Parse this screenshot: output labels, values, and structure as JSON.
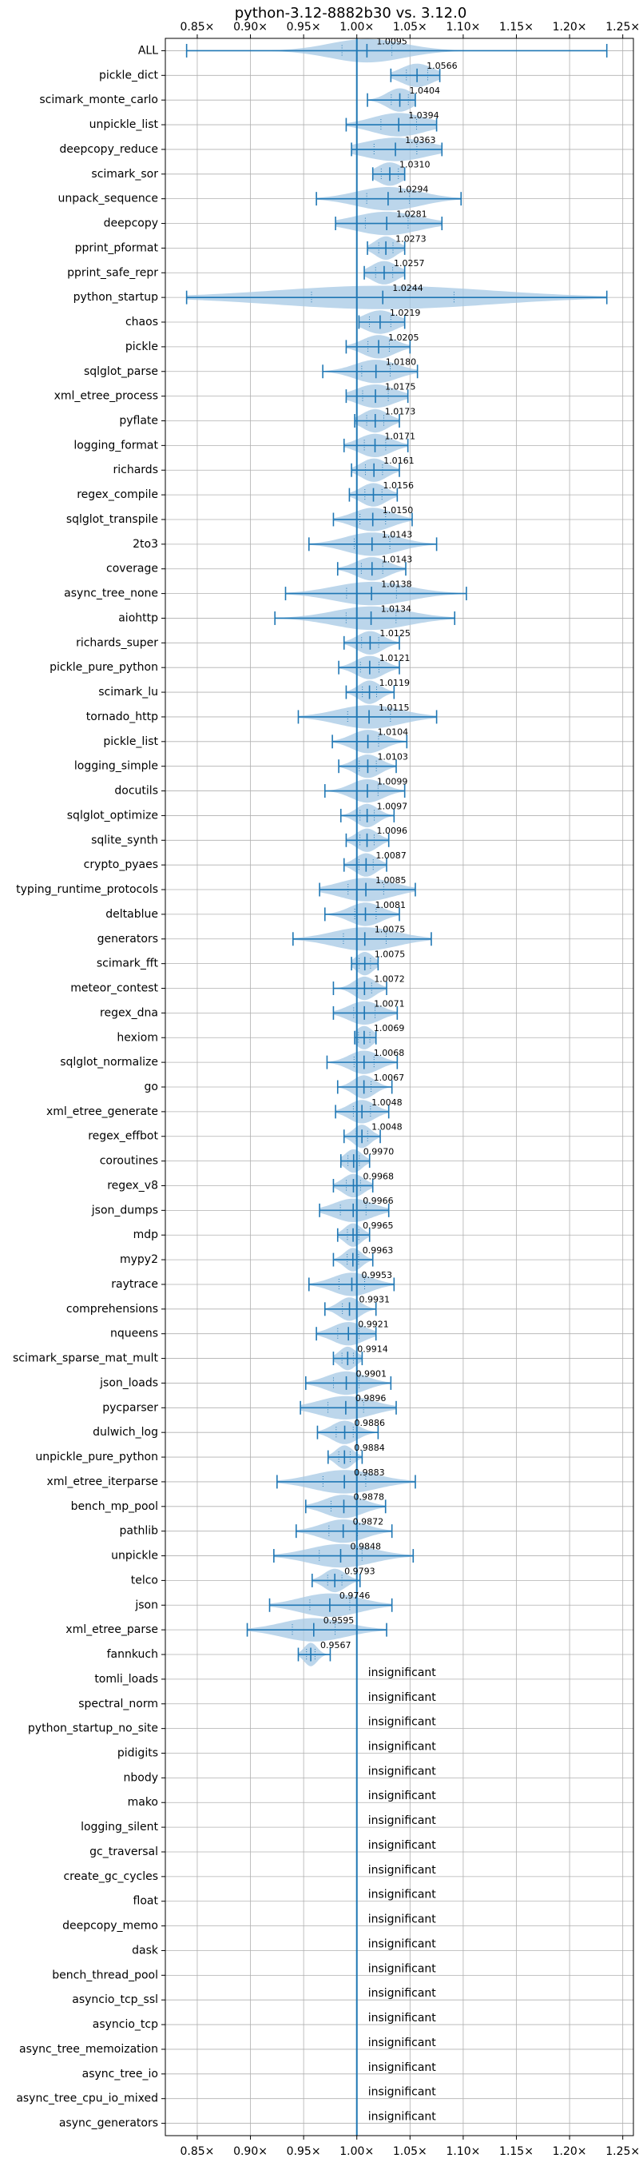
{
  "chart_data": {
    "type": "violin",
    "title": "python-3.12-8882b30 vs. 3.12.0",
    "xlabel": "",
    "ylabel": "",
    "xlim": [
      0.82,
      1.26
    ],
    "xticks": [
      0.85,
      0.9,
      0.95,
      1.0,
      1.05,
      1.1,
      1.15,
      1.2,
      1.25
    ],
    "xtick_labels": [
      "0.85×",
      "0.90×",
      "0.95×",
      "1.00×",
      "1.05×",
      "1.10×",
      "1.15×",
      "1.20×",
      "1.25×"
    ],
    "reference_line": 1.0,
    "grid": true,
    "colors": {
      "violin": "#a6c8e4",
      "line": "#1f77b4",
      "grid": "#b0b0b0"
    },
    "insignificant_label": "insignificant",
    "benchmarks": [
      {
        "name": "ALL",
        "label": "1.0095",
        "center": 1.0095,
        "min": 0.84,
        "max": 1.235,
        "spread": 0.035
      },
      {
        "name": "pickle_dict",
        "label": "1.0566",
        "center": 1.0566,
        "min": 1.032,
        "max": 1.078,
        "spread": 0.015
      },
      {
        "name": "scimark_monte_carlo",
        "label": "1.0404",
        "center": 1.0404,
        "min": 1.01,
        "max": 1.055,
        "spread": 0.012
      },
      {
        "name": "unpickle_list",
        "label": "1.0394",
        "center": 1.0394,
        "min": 0.99,
        "max": 1.075,
        "spread": 0.025
      },
      {
        "name": "deepcopy_reduce",
        "label": "1.0363",
        "center": 1.0363,
        "min": 0.995,
        "max": 1.08,
        "spread": 0.03
      },
      {
        "name": "scimark_sor",
        "label": "1.0310",
        "center": 1.031,
        "min": 1.015,
        "max": 1.045,
        "spread": 0.012
      },
      {
        "name": "unpack_sequence",
        "label": "1.0294",
        "center": 1.0294,
        "min": 0.962,
        "max": 1.098,
        "spread": 0.03
      },
      {
        "name": "deepcopy",
        "label": "1.0281",
        "center": 1.0281,
        "min": 0.98,
        "max": 1.08,
        "spread": 0.03
      },
      {
        "name": "pprint_pformat",
        "label": "1.0273",
        "center": 1.0273,
        "min": 1.01,
        "max": 1.045,
        "spread": 0.01
      },
      {
        "name": "pprint_safe_repr",
        "label": "1.0257",
        "center": 1.0257,
        "min": 1.007,
        "max": 1.045,
        "spread": 0.012
      },
      {
        "name": "python_startup",
        "label": "1.0244",
        "center": 1.0244,
        "min": 0.84,
        "max": 1.235,
        "spread": 0.1
      },
      {
        "name": "chaos",
        "label": "1.0219",
        "center": 1.0219,
        "min": 1.002,
        "max": 1.045,
        "spread": 0.015
      },
      {
        "name": "pickle",
        "label": "1.0205",
        "center": 1.0205,
        "min": 0.99,
        "max": 1.05,
        "spread": 0.015
      },
      {
        "name": "sqlglot_parse",
        "label": "1.0180",
        "center": 1.018,
        "min": 0.968,
        "max": 1.057,
        "spread": 0.02
      },
      {
        "name": "xml_etree_process",
        "label": "1.0175",
        "center": 1.0175,
        "min": 0.99,
        "max": 1.048,
        "spread": 0.018
      },
      {
        "name": "pyflate",
        "label": "1.0173",
        "center": 1.0173,
        "min": 0.998,
        "max": 1.04,
        "spread": 0.012
      },
      {
        "name": "logging_format",
        "label": "1.0171",
        "center": 1.0171,
        "min": 0.988,
        "max": 1.048,
        "spread": 0.015
      },
      {
        "name": "richards",
        "label": "1.0161",
        "center": 1.0161,
        "min": 0.995,
        "max": 1.04,
        "spread": 0.012
      },
      {
        "name": "regex_compile",
        "label": "1.0156",
        "center": 1.0156,
        "min": 0.993,
        "max": 1.038,
        "spread": 0.012
      },
      {
        "name": "sqlglot_transpile",
        "label": "1.0150",
        "center": 1.015,
        "min": 0.978,
        "max": 1.052,
        "spread": 0.018
      },
      {
        "name": "2to3",
        "label": "1.0143",
        "center": 1.0143,
        "min": 0.955,
        "max": 1.075,
        "spread": 0.025
      },
      {
        "name": "coverage",
        "label": "1.0143",
        "center": 1.0143,
        "min": 0.982,
        "max": 1.046,
        "spread": 0.015
      },
      {
        "name": "async_tree_none",
        "label": "1.0138",
        "center": 1.0138,
        "min": 0.933,
        "max": 1.103,
        "spread": 0.035
      },
      {
        "name": "aiohttp",
        "label": "1.0134",
        "center": 1.0134,
        "min": 0.923,
        "max": 1.092,
        "spread": 0.035
      },
      {
        "name": "richards_super",
        "label": "1.0125",
        "center": 1.0125,
        "min": 0.988,
        "max": 1.04,
        "spread": 0.012
      },
      {
        "name": "pickle_pure_python",
        "label": "1.0121",
        "center": 1.0121,
        "min": 0.983,
        "max": 1.04,
        "spread": 0.013
      },
      {
        "name": "scimark_lu",
        "label": "1.0119",
        "center": 1.0119,
        "min": 0.99,
        "max": 1.035,
        "spread": 0.01
      },
      {
        "name": "tornado_http",
        "label": "1.0115",
        "center": 1.0115,
        "min": 0.945,
        "max": 1.075,
        "spread": 0.03
      },
      {
        "name": "pickle_list",
        "label": "1.0104",
        "center": 1.0104,
        "min": 0.977,
        "max": 1.047,
        "spread": 0.015
      },
      {
        "name": "logging_simple",
        "label": "1.0103",
        "center": 1.0103,
        "min": 0.983,
        "max": 1.037,
        "spread": 0.012
      },
      {
        "name": "docutils",
        "label": "1.0099",
        "center": 1.0099,
        "min": 0.97,
        "max": 1.045,
        "spread": 0.015
      },
      {
        "name": "sqlglot_optimize",
        "label": "1.0097",
        "center": 1.0097,
        "min": 0.985,
        "max": 1.035,
        "spread": 0.01
      },
      {
        "name": "sqlite_synth",
        "label": "1.0096",
        "center": 1.0096,
        "min": 0.99,
        "max": 1.03,
        "spread": 0.01
      },
      {
        "name": "crypto_pyaes",
        "label": "1.0087",
        "center": 1.0087,
        "min": 0.988,
        "max": 1.028,
        "spread": 0.01
      },
      {
        "name": "typing_runtime_protocols",
        "label": "1.0085",
        "center": 1.0085,
        "min": 0.965,
        "max": 1.055,
        "spread": 0.025
      },
      {
        "name": "deltablue",
        "label": "1.0081",
        "center": 1.0081,
        "min": 0.97,
        "max": 1.04,
        "spread": 0.015
      },
      {
        "name": "generators",
        "label": "1.0075",
        "center": 1.0075,
        "min": 0.94,
        "max": 1.07,
        "spread": 0.03
      },
      {
        "name": "scimark_fft",
        "label": "1.0075",
        "center": 1.0075,
        "min": 0.995,
        "max": 1.02,
        "spread": 0.008
      },
      {
        "name": "meteor_contest",
        "label": "1.0072",
        "center": 1.0072,
        "min": 0.978,
        "max": 1.028,
        "spread": 0.01
      },
      {
        "name": "regex_dna",
        "label": "1.0071",
        "center": 1.0071,
        "min": 0.978,
        "max": 1.038,
        "spread": 0.015
      },
      {
        "name": "hexiom",
        "label": "1.0069",
        "center": 1.0069,
        "min": 0.998,
        "max": 1.018,
        "spread": 0.008
      },
      {
        "name": "sqlglot_normalize",
        "label": "1.0068",
        "center": 1.0068,
        "min": 0.972,
        "max": 1.038,
        "spread": 0.014
      },
      {
        "name": "go",
        "label": "1.0067",
        "center": 1.0067,
        "min": 0.982,
        "max": 1.033,
        "spread": 0.01
      },
      {
        "name": "xml_etree_generate",
        "label": "1.0048",
        "center": 1.0048,
        "min": 0.98,
        "max": 1.03,
        "spread": 0.012
      },
      {
        "name": "regex_effbot",
        "label": "1.0048",
        "center": 1.0048,
        "min": 0.988,
        "max": 1.022,
        "spread": 0.008
      },
      {
        "name": "coroutines",
        "label": "0.9970",
        "center": 0.997,
        "min": 0.985,
        "max": 1.012,
        "spread": 0.008
      },
      {
        "name": "regex_v8",
        "label": "0.9968",
        "center": 0.9968,
        "min": 0.978,
        "max": 1.015,
        "spread": 0.01
      },
      {
        "name": "json_dumps",
        "label": "0.9966",
        "center": 0.9966,
        "min": 0.965,
        "max": 1.03,
        "spread": 0.018
      },
      {
        "name": "mdp",
        "label": "0.9965",
        "center": 0.9965,
        "min": 0.982,
        "max": 1.012,
        "spread": 0.008
      },
      {
        "name": "mypy2",
        "label": "0.9963",
        "center": 0.9963,
        "min": 0.978,
        "max": 1.015,
        "spread": 0.008
      },
      {
        "name": "raytrace",
        "label": "0.9953",
        "center": 0.9953,
        "min": 0.955,
        "max": 1.035,
        "spread": 0.018
      },
      {
        "name": "comprehensions",
        "label": "0.9931",
        "center": 0.9931,
        "min": 0.97,
        "max": 1.018,
        "spread": 0.01
      },
      {
        "name": "nqueens",
        "label": "0.9921",
        "center": 0.9921,
        "min": 0.962,
        "max": 1.018,
        "spread": 0.015
      },
      {
        "name": "scimark_sparse_mat_mult",
        "label": "0.9914",
        "center": 0.9914,
        "min": 0.978,
        "max": 1.005,
        "spread": 0.008
      },
      {
        "name": "json_loads",
        "label": "0.9901",
        "center": 0.9901,
        "min": 0.952,
        "max": 1.032,
        "spread": 0.018
      },
      {
        "name": "pycparser",
        "label": "0.9896",
        "center": 0.9896,
        "min": 0.947,
        "max": 1.037,
        "spread": 0.025
      },
      {
        "name": "dulwich_log",
        "label": "0.9886",
        "center": 0.9886,
        "min": 0.963,
        "max": 1.02,
        "spread": 0.012
      },
      {
        "name": "unpickle_pure_python",
        "label": "0.9884",
        "center": 0.9884,
        "min": 0.973,
        "max": 1.005,
        "spread": 0.008
      },
      {
        "name": "xml_etree_iterparse",
        "label": "0.9883",
        "center": 0.9883,
        "min": 0.925,
        "max": 1.055,
        "spread": 0.03
      },
      {
        "name": "bench_mp_pool",
        "label": "0.9878",
        "center": 0.9878,
        "min": 0.952,
        "max": 1.027,
        "spread": 0.018
      },
      {
        "name": "pathlib",
        "label": "0.9872",
        "center": 0.9872,
        "min": 0.943,
        "max": 1.033,
        "spread": 0.02
      },
      {
        "name": "unpickle",
        "label": "0.9848",
        "center": 0.9848,
        "min": 0.922,
        "max": 1.053,
        "spread": 0.03
      },
      {
        "name": "telco",
        "label": "0.9793",
        "center": 0.9793,
        "min": 0.958,
        "max": 1.003,
        "spread": 0.01
      },
      {
        "name": "json",
        "label": "0.9746",
        "center": 0.9746,
        "min": 0.918,
        "max": 1.033,
        "spread": 0.028
      },
      {
        "name": "xml_etree_parse",
        "label": "0.9595",
        "center": 0.9595,
        "min": 0.897,
        "max": 1.028,
        "spread": 0.03
      },
      {
        "name": "fannkuch",
        "label": "0.9567",
        "center": 0.9567,
        "min": 0.945,
        "max": 0.975,
        "spread": 0.006
      },
      {
        "name": "tomli_loads",
        "insignificant": true
      },
      {
        "name": "spectral_norm",
        "insignificant": true
      },
      {
        "name": "python_startup_no_site",
        "insignificant": true
      },
      {
        "name": "pidigits",
        "insignificant": true
      },
      {
        "name": "nbody",
        "insignificant": true
      },
      {
        "name": "mako",
        "insignificant": true
      },
      {
        "name": "logging_silent",
        "insignificant": true
      },
      {
        "name": "gc_traversal",
        "insignificant": true
      },
      {
        "name": "create_gc_cycles",
        "insignificant": true
      },
      {
        "name": "float",
        "insignificant": true
      },
      {
        "name": "deepcopy_memo",
        "insignificant": true
      },
      {
        "name": "dask",
        "insignificant": true
      },
      {
        "name": "bench_thread_pool",
        "insignificant": true
      },
      {
        "name": "asyncio_tcp_ssl",
        "insignificant": true
      },
      {
        "name": "asyncio_tcp",
        "insignificant": true
      },
      {
        "name": "async_tree_memoization",
        "insignificant": true
      },
      {
        "name": "async_tree_io",
        "insignificant": true
      },
      {
        "name": "async_tree_cpu_io_mixed",
        "insignificant": true
      },
      {
        "name": "async_generators",
        "insignificant": true
      }
    ]
  }
}
